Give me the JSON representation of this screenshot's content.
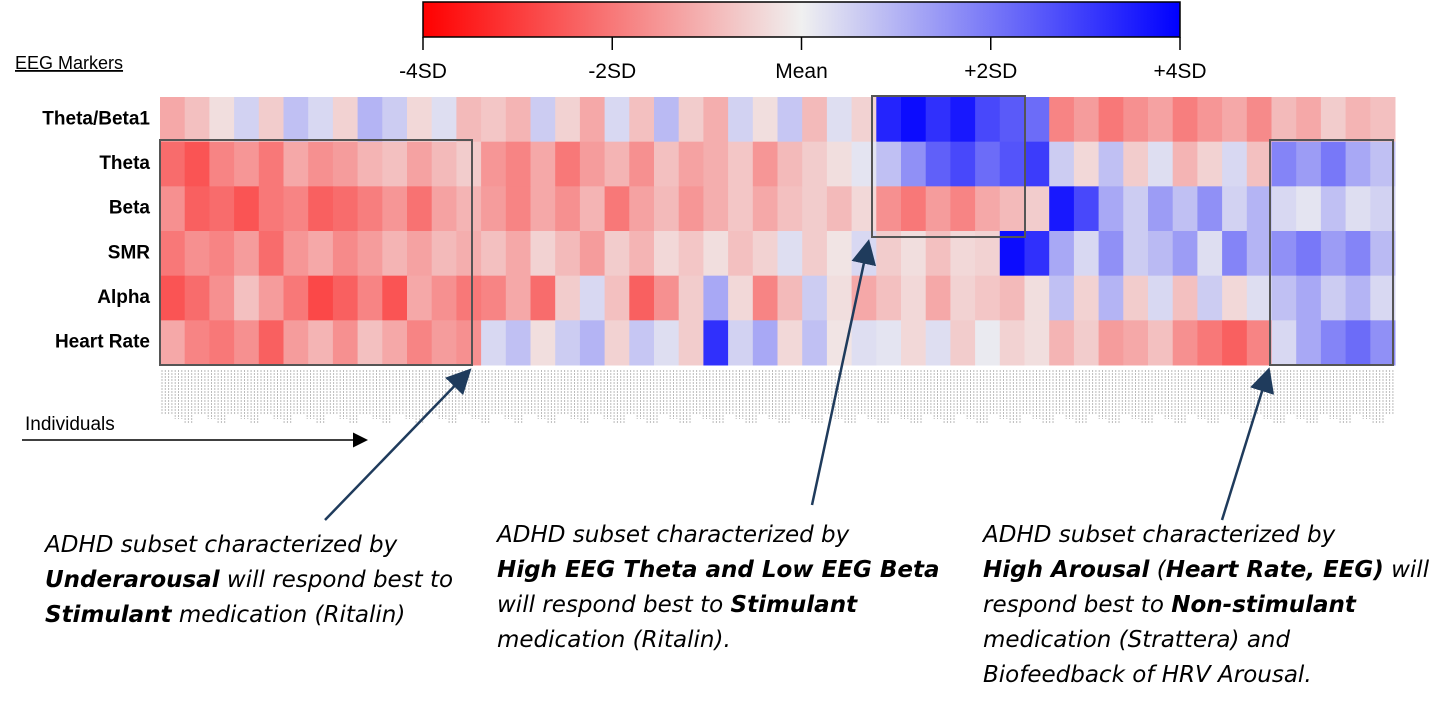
{
  "chart_data": {
    "type": "heatmap",
    "row_axis_title": "EEG Markers",
    "x_axis_title": "Individuals",
    "rows": [
      "Theta/Beta1",
      "Theta",
      "Beta",
      "SMR",
      "Alpha",
      "Heart Rate"
    ],
    "colorbar_lim": [
      -4,
      4
    ],
    "colorbar_ticks": [
      {
        "value": -4,
        "label": "-4SD"
      },
      {
        "value": -2,
        "label": "-2SD"
      },
      {
        "value": 0,
        "label": "Mean"
      },
      {
        "value": 2,
        "label": "+2SD"
      },
      {
        "value": 4,
        "label": "+4SD"
      }
    ],
    "low_color": "#ff0000",
    "mid_color": "#f0f0f0",
    "high_color": "#0000ff",
    "values": [
      [
        -1.2,
        -0.8,
        -0.3,
        0.5,
        -0.6,
        0.8,
        0.4,
        -0.5,
        1.0,
        0.6,
        -0.4,
        0.3,
        -0.9,
        -0.7,
        -1.0,
        0.6,
        -0.5,
        -1.2,
        0.4,
        -0.8,
        0.9,
        -0.6,
        -1.1,
        0.5,
        -0.3,
        0.7,
        -0.9,
        0.3,
        -0.5,
        3.4,
        3.8,
        3.2,
        3.6,
        2.8,
        2.5,
        2.2,
        -1.8,
        -1.4,
        -2.0,
        -1.6,
        -1.3,
        -1.9,
        -1.5,
        -1.2,
        -1.7,
        -0.9,
        -1.2,
        -0.6,
        -1.0,
        -0.8
      ],
      [
        -2.2,
        -2.6,
        -1.8,
        -1.5,
        -2.0,
        -1.2,
        -1.6,
        -1.4,
        -1.0,
        -0.8,
        -1.3,
        -0.9,
        -0.6,
        -1.5,
        -1.8,
        -1.2,
        -2.0,
        -1.4,
        -1.0,
        -1.6,
        -0.8,
        -1.3,
        -1.1,
        -0.7,
        -1.5,
        -0.9,
        -0.6,
        -0.3,
        0.2,
        0.8,
        1.6,
        2.4,
        2.8,
        2.2,
        2.6,
        3.0,
        0.6,
        -0.4,
        0.8,
        -0.6,
        0.3,
        -1.0,
        -0.5,
        0.4,
        -0.8,
        1.8,
        1.4,
        2.0,
        1.2,
        0.8
      ],
      [
        -1.6,
        -2.4,
        -2.2,
        -2.6,
        -2.0,
        -1.8,
        -2.4,
        -2.2,
        -1.9,
        -1.5,
        -2.1,
        -1.3,
        -1.0,
        -1.4,
        -1.8,
        -1.2,
        -1.6,
        -1.0,
        -2.0,
        -1.3,
        -0.9,
        -1.5,
        -1.1,
        -0.7,
        -1.2,
        -0.8,
        -0.6,
        -0.9,
        -0.4,
        -1.6,
        -2.0,
        -1.4,
        -1.8,
        -1.2,
        -0.9,
        -0.6,
        3.6,
        2.8,
        1.2,
        0.6,
        1.4,
        0.8,
        1.6,
        0.5,
        1.0,
        0.4,
        0.2,
        0.8,
        0.3,
        0.5
      ],
      [
        -2.0,
        -1.6,
        -1.8,
        -1.4,
        -2.2,
        -1.5,
        -1.2,
        -1.7,
        -1.4,
        -1.0,
        -1.3,
        -0.9,
        -1.1,
        -0.8,
        -1.2,
        -0.5,
        -0.9,
        -1.4,
        -0.6,
        -1.0,
        -0.4,
        -0.7,
        -0.3,
        -0.8,
        -0.5,
        0.3,
        -0.6,
        -0.2,
        0.4,
        -0.6,
        -0.3,
        -0.8,
        -0.4,
        -0.5,
        3.8,
        3.2,
        1.2,
        0.4,
        1.6,
        0.6,
        0.9,
        1.4,
        0.3,
        1.8,
        1.0,
        1.6,
        2.0,
        1.4,
        1.8,
        0.9
      ],
      [
        -2.6,
        -2.2,
        -1.6,
        -0.8,
        -1.4,
        -2.0,
        -2.8,
        -2.4,
        -1.8,
        -2.6,
        -1.2,
        -1.6,
        -2.0,
        -1.8,
        -1.2,
        -2.2,
        -0.6,
        0.4,
        -0.8,
        -2.4,
        -1.6,
        -0.6,
        1.2,
        -0.4,
        -1.8,
        -0.9,
        0.6,
        -0.3,
        -1.2,
        -0.8,
        -0.4,
        -1.2,
        -0.5,
        -0.7,
        -0.9,
        -0.3,
        0.8,
        -0.5,
        1.0,
        -0.6,
        0.4,
        -0.8,
        0.6,
        -0.4,
        0.3,
        0.8,
        1.2,
        0.6,
        1.0,
        0.4
      ],
      [
        -1.2,
        -1.8,
        -2.0,
        -1.6,
        -2.4,
        -1.4,
        -1.0,
        -1.6,
        -0.8,
        -1.2,
        -1.8,
        -1.4,
        -1.6,
        0.4,
        0.8,
        -0.3,
        0.6,
        1.0,
        -0.5,
        0.7,
        0.3,
        -0.6,
        3.2,
        0.5,
        1.2,
        -0.4,
        0.8,
        -0.2,
        0.3,
        0.2,
        -0.4,
        0.3,
        -0.6,
        0.1,
        -0.5,
        -0.3,
        -1.0,
        -0.6,
        -1.4,
        -1.2,
        -0.8,
        -1.6,
        -2.0,
        -2.4,
        -1.8,
        0.4,
        1.2,
        1.8,
        2.2,
        1.6
      ]
    ]
  },
  "annotations": [
    {
      "lines": [
        [
          {
            "text": "ADHD subset characterized by",
            "bold": false
          }
        ],
        [
          {
            "text": "Underarousal",
            "bold": true
          },
          {
            "text": " will respond best to",
            "bold": false
          }
        ],
        [
          {
            "text": "Stimulant",
            "bold": true
          },
          {
            "text": " medication (Ritalin)",
            "bold": false
          }
        ]
      ]
    },
    {
      "lines": [
        [
          {
            "text": "ADHD subset characterized by",
            "bold": false
          }
        ],
        [
          {
            "text": "High EEG Theta and Low EEG Beta",
            "bold": true
          }
        ],
        [
          {
            "text": "will respond best to ",
            "bold": false
          },
          {
            "text": "Stimulant",
            "bold": true
          }
        ],
        [
          {
            "text": "medication (Ritalin).",
            "bold": false
          }
        ]
      ]
    },
    {
      "lines": [
        [
          {
            "text": "ADHD subset characterized by",
            "bold": false
          }
        ],
        [
          {
            "text": "High Arousal",
            "bold": true
          },
          {
            "text": " (",
            "bold": false
          },
          {
            "text": "Heart Rate, EEG)",
            "bold": true
          },
          {
            "text": " will",
            "bold": false
          }
        ],
        [
          {
            "text": "respond best to ",
            "bold": false
          },
          {
            "text": "Non-stimulant",
            "bold": true
          }
        ],
        [
          {
            "text": "medication (Strattera) and",
            "bold": false
          }
        ],
        [
          {
            "text": "Biofeedback of HRV Arousal.",
            "bold": false
          }
        ]
      ]
    }
  ]
}
